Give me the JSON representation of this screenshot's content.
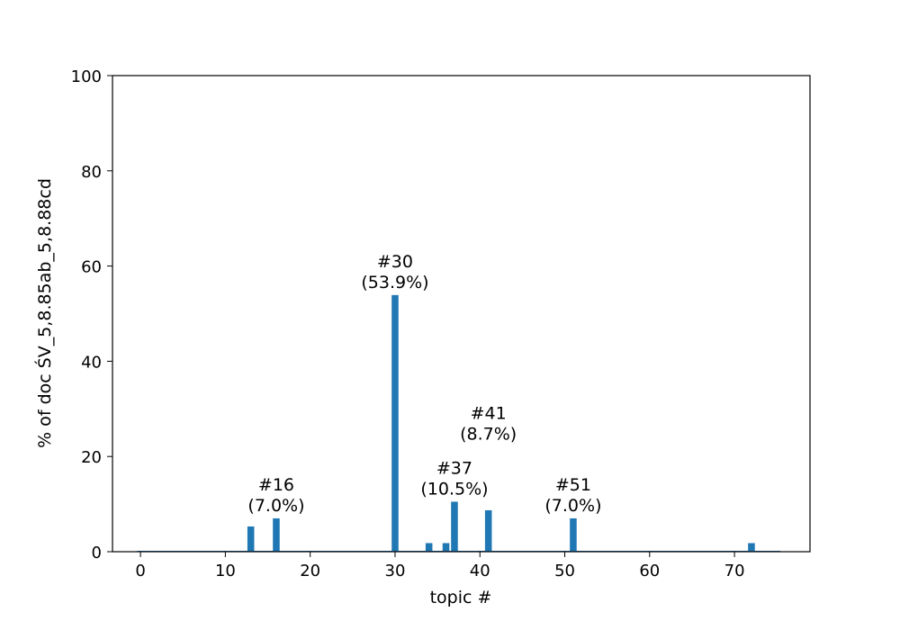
{
  "chart_data": {
    "type": "bar",
    "xlabel": "topic #",
    "ylabel": "% of doc ŚV_5,8.85ab_5,8.88cd",
    "xlim": [
      -3.3,
      78.9
    ],
    "ylim": [
      0,
      100
    ],
    "xticks": [
      0,
      10,
      20,
      30,
      40,
      50,
      60,
      70
    ],
    "yticks": [
      0,
      20,
      40,
      60,
      80,
      100
    ],
    "bar_color": "#1f77b4",
    "bars": [
      {
        "x": 13,
        "value": 5.3
      },
      {
        "x": 16,
        "value": 7.0
      },
      {
        "x": 30,
        "value": 53.9
      },
      {
        "x": 34,
        "value": 1.8
      },
      {
        "x": 36,
        "value": 1.8
      },
      {
        "x": 37,
        "value": 10.5
      },
      {
        "x": 41,
        "value": 8.7
      },
      {
        "x": 51,
        "value": 7.0
      },
      {
        "x": 72,
        "value": 1.8
      }
    ],
    "annotations": [
      {
        "x": 16,
        "y": 7.0,
        "line1": "#16",
        "line2": "(7.0%)"
      },
      {
        "x": 30,
        "y": 53.9,
        "line1": "#30",
        "line2": "(53.9%)"
      },
      {
        "x": 37,
        "y": 10.5,
        "line1": "#37",
        "line2": "(10.5%)"
      },
      {
        "x": 41,
        "y": 22.0,
        "line1": "#41",
        "line2": "(8.7%)"
      },
      {
        "x": 51,
        "y": 7.0,
        "line1": "#51",
        "line2": "(7.0%)"
      }
    ]
  }
}
